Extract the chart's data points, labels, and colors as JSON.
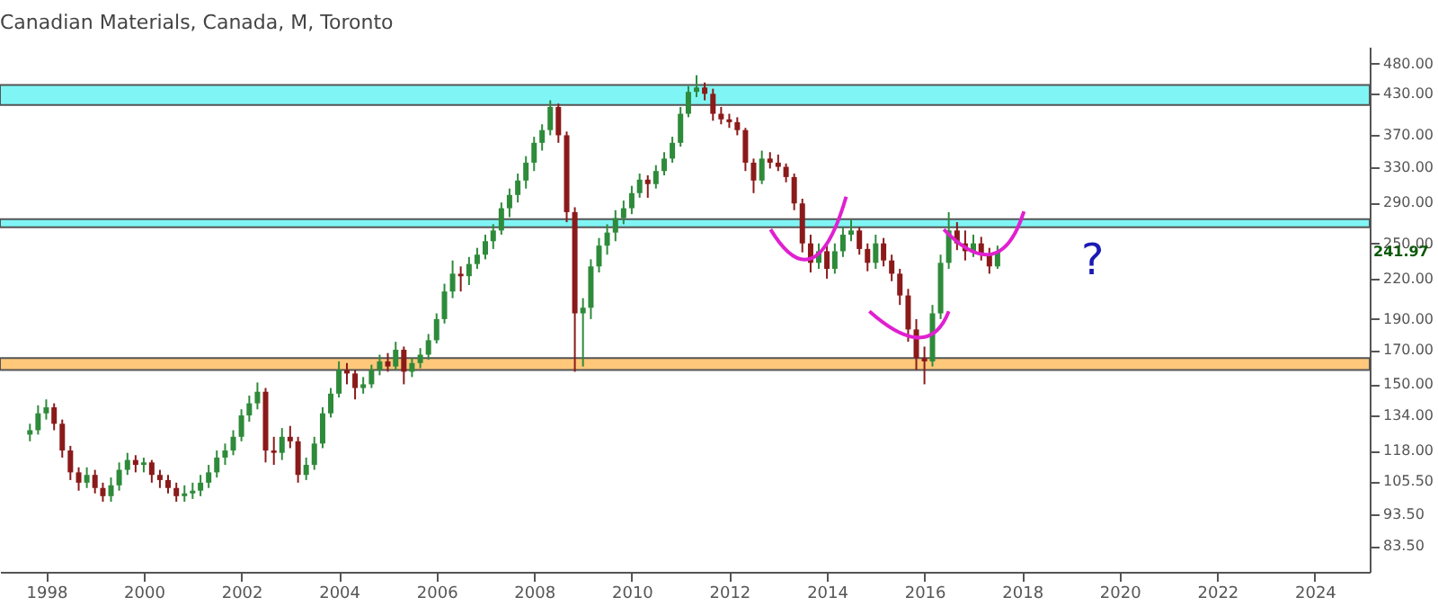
{
  "chart_data": {
    "type": "candlestick",
    "title": "Canadian Materials, Canada, M, Toronto",
    "x": [
      "1997-09",
      "1997-11",
      "1998-01",
      "1998-03",
      "1998-05",
      "1998-07",
      "1998-09",
      "1998-11",
      "1999-01",
      "1999-03",
      "1999-05",
      "1999-07",
      "1999-09",
      "1999-11",
      "2000-01",
      "2000-03",
      "2000-05",
      "2000-07",
      "2000-09",
      "2000-11",
      "2001-01",
      "2001-03",
      "2001-05",
      "2001-07",
      "2001-09",
      "2001-11",
      "2002-01",
      "2002-03",
      "2002-05",
      "2002-07",
      "2002-09",
      "2002-11",
      "2003-01",
      "2003-03",
      "2003-05",
      "2003-07",
      "2003-09",
      "2003-11",
      "2004-01",
      "2004-03",
      "2004-05",
      "2004-07",
      "2004-09",
      "2004-11",
      "2005-01",
      "2005-03",
      "2005-05",
      "2005-07",
      "2005-09",
      "2005-11",
      "2006-01",
      "2006-03",
      "2006-05",
      "2006-07",
      "2006-09",
      "2006-11",
      "2007-01",
      "2007-03",
      "2007-05",
      "2007-07",
      "2007-09",
      "2007-11",
      "2008-01",
      "2008-03",
      "2008-05",
      "2008-07",
      "2008-09",
      "2008-11",
      "2009-01",
      "2009-03",
      "2009-05",
      "2009-07",
      "2009-09",
      "2009-11",
      "2010-01",
      "2010-03",
      "2010-05",
      "2010-07",
      "2010-09",
      "2010-11",
      "2011-01",
      "2011-03",
      "2011-05",
      "2011-07",
      "2011-09",
      "2011-11",
      "2012-01",
      "2012-03",
      "2012-05",
      "2012-07",
      "2012-09",
      "2012-11",
      "2013-01",
      "2013-03",
      "2013-05",
      "2013-07",
      "2013-09",
      "2013-11",
      "2014-01",
      "2014-03",
      "2014-05",
      "2014-07",
      "2014-09",
      "2014-11",
      "2015-01",
      "2015-03",
      "2015-05",
      "2015-07",
      "2015-09",
      "2015-11",
      "2016-01",
      "2016-03",
      "2016-05",
      "2016-07",
      "2016-09",
      "2016-11",
      "2017-01",
      "2017-03",
      "2017-05",
      "2017-07"
    ],
    "ohlc": [
      [
        125,
        130,
        122,
        127
      ],
      [
        127,
        139,
        125,
        135
      ],
      [
        135,
        142,
        132,
        138
      ],
      [
        138,
        140,
        127,
        130
      ],
      [
        130,
        132,
        115,
        118
      ],
      [
        118,
        120,
        106,
        109
      ],
      [
        109,
        111,
        102,
        105
      ],
      [
        105,
        111,
        103,
        108
      ],
      [
        108,
        110,
        101,
        103
      ],
      [
        103,
        105,
        98,
        100
      ],
      [
        100,
        107,
        98,
        104
      ],
      [
        104,
        113,
        102,
        110
      ],
      [
        110,
        117,
        108,
        114
      ],
      [
        114,
        116,
        109,
        112
      ],
      [
        112,
        115,
        109,
        113
      ],
      [
        113,
        114,
        105,
        108
      ],
      [
        108,
        110,
        103,
        106
      ],
      [
        106,
        108,
        101,
        103
      ],
      [
        103,
        105,
        98,
        100
      ],
      [
        100,
        104,
        98,
        101
      ],
      [
        101,
        105,
        99,
        102
      ],
      [
        102,
        108,
        100,
        105
      ],
      [
        105,
        112,
        103,
        109
      ],
      [
        109,
        118,
        107,
        115
      ],
      [
        115,
        121,
        112,
        118
      ],
      [
        118,
        127,
        116,
        124
      ],
      [
        124,
        137,
        122,
        134
      ],
      [
        134,
        144,
        131,
        140
      ],
      [
        140,
        151,
        137,
        146
      ],
      [
        146,
        148,
        113,
        118
      ],
      [
        118,
        124,
        112,
        117
      ],
      [
        117,
        128,
        114,
        124
      ],
      [
        124,
        129,
        119,
        122
      ],
      [
        122,
        124,
        105,
        108
      ],
      [
        108,
        115,
        106,
        112
      ],
      [
        112,
        124,
        110,
        121
      ],
      [
        121,
        138,
        119,
        135
      ],
      [
        135,
        148,
        133,
        145
      ],
      [
        145,
        163,
        143,
        158
      ],
      [
        158,
        162,
        150,
        156
      ],
      [
        156,
        158,
        142,
        148
      ],
      [
        148,
        154,
        145,
        150
      ],
      [
        150,
        161,
        148,
        158
      ],
      [
        158,
        167,
        155,
        163
      ],
      [
        163,
        168,
        157,
        160
      ],
      [
        160,
        175,
        158,
        170
      ],
      [
        170,
        172,
        150,
        157
      ],
      [
        157,
        165,
        154,
        162
      ],
      [
        162,
        171,
        159,
        167
      ],
      [
        167,
        180,
        164,
        176
      ],
      [
        176,
        194,
        174,
        190
      ],
      [
        190,
        216,
        187,
        210
      ],
      [
        210,
        235,
        205,
        224
      ],
      [
        224,
        230,
        210,
        222
      ],
      [
        222,
        238,
        215,
        232
      ],
      [
        232,
        246,
        228,
        240
      ],
      [
        240,
        258,
        236,
        252
      ],
      [
        252,
        268,
        245,
        262
      ],
      [
        262,
        290,
        258,
        284
      ],
      [
        284,
        305,
        275,
        298
      ],
      [
        298,
        322,
        290,
        314
      ],
      [
        314,
        343,
        305,
        335
      ],
      [
        335,
        368,
        325,
        360
      ],
      [
        360,
        385,
        350,
        377
      ],
      [
        377,
        420,
        370,
        410
      ],
      [
        410,
        415,
        360,
        370
      ],
      [
        370,
        375,
        270,
        280
      ],
      [
        280,
        285,
        157,
        194
      ],
      [
        194,
        205,
        160,
        198
      ],
      [
        198,
        236,
        190,
        230
      ],
      [
        230,
        255,
        225,
        248
      ],
      [
        248,
        268,
        240,
        260
      ],
      [
        260,
        282,
        252,
        274
      ],
      [
        274,
        292,
        268,
        284
      ],
      [
        284,
        308,
        278,
        300
      ],
      [
        300,
        322,
        295,
        315
      ],
      [
        315,
        320,
        295,
        310
      ],
      [
        310,
        332,
        305,
        325
      ],
      [
        325,
        348,
        320,
        340
      ],
      [
        340,
        368,
        335,
        360
      ],
      [
        360,
        410,
        355,
        400
      ],
      [
        400,
        442,
        395,
        433
      ],
      [
        433,
        460,
        425,
        440
      ],
      [
        440,
        448,
        420,
        430
      ],
      [
        430,
        438,
        390,
        400
      ],
      [
        400,
        410,
        385,
        392
      ],
      [
        392,
        400,
        380,
        388
      ],
      [
        388,
        395,
        370,
        377
      ],
      [
        377,
        380,
        325,
        335
      ],
      [
        335,
        340,
        300,
        314
      ],
      [
        314,
        350,
        310,
        340
      ],
      [
        340,
        348,
        328,
        335
      ],
      [
        335,
        345,
        325,
        330
      ],
      [
        330,
        334,
        312,
        318
      ],
      [
        318,
        322,
        282,
        289
      ],
      [
        289,
        294,
        242,
        250
      ],
      [
        250,
        258,
        225,
        233
      ],
      [
        233,
        250,
        228,
        243
      ],
      [
        243,
        248,
        220,
        228
      ],
      [
        228,
        250,
        224,
        243
      ],
      [
        243,
        265,
        238,
        258
      ],
      [
        258,
        272,
        252,
        262
      ],
      [
        262,
        265,
        240,
        245
      ],
      [
        245,
        250,
        226,
        233
      ],
      [
        233,
        258,
        228,
        250
      ],
      [
        250,
        255,
        230,
        235
      ],
      [
        235,
        240,
        218,
        224
      ],
      [
        224,
        228,
        200,
        207
      ],
      [
        207,
        212,
        175,
        183
      ],
      [
        183,
        190,
        158,
        165
      ],
      [
        165,
        172,
        150,
        163
      ],
      [
        163,
        200,
        160,
        194
      ],
      [
        194,
        240,
        190,
        233
      ],
      [
        233,
        280,
        228,
        262
      ],
      [
        262,
        270,
        244,
        250
      ],
      [
        250,
        262,
        235,
        243
      ],
      [
        243,
        258,
        238,
        250
      ],
      [
        250,
        256,
        235,
        240
      ],
      [
        240,
        246,
        224,
        230
      ],
      [
        230,
        248,
        228,
        241.97
      ]
    ],
    "colors": [
      "#2e8b3a",
      "#2e8b3a",
      "#2e8b3a",
      "#8b1a1a",
      "#8b1a1a",
      "#8b1a1a",
      "#8b1a1a",
      "#2e8b3a",
      "#8b1a1a",
      "#8b1a1a",
      "#2e8b3a",
      "#2e8b3a",
      "#2e8b3a",
      "#8b1a1a",
      "#2e8b3a",
      "#8b1a1a",
      "#8b1a1a",
      "#8b1a1a",
      "#8b1a1a",
      "#2e8b3a",
      "#2e8b3a",
      "#2e8b3a",
      "#2e8b3a",
      "#2e8b3a",
      "#2e8b3a",
      "#2e8b3a",
      "#2e8b3a",
      "#2e8b3a",
      "#2e8b3a",
      "#8b1a1a",
      "#8b1a1a",
      "#2e8b3a",
      "#8b1a1a",
      "#8b1a1a",
      "#2e8b3a",
      "#2e8b3a",
      "#2e8b3a",
      "#2e8b3a",
      "#2e8b3a",
      "#8b1a1a",
      "#8b1a1a",
      "#2e8b3a",
      "#2e8b3a",
      "#2e8b3a",
      "#8b1a1a",
      "#2e8b3a",
      "#8b1a1a",
      "#2e8b3a",
      "#2e8b3a",
      "#2e8b3a",
      "#2e8b3a",
      "#2e8b3a",
      "#2e8b3a",
      "#8b1a1a",
      "#2e8b3a",
      "#2e8b3a",
      "#2e8b3a",
      "#2e8b3a",
      "#2e8b3a",
      "#2e8b3a",
      "#2e8b3a",
      "#2e8b3a",
      "#2e8b3a",
      "#2e8b3a",
      "#2e8b3a",
      "#8b1a1a",
      "#8b1a1a",
      "#8b1a1a",
      "#2e8b3a",
      "#2e8b3a",
      "#2e8b3a",
      "#2e8b3a",
      "#2e8b3a",
      "#2e8b3a",
      "#2e8b3a",
      "#2e8b3a",
      "#8b1a1a",
      "#2e8b3a",
      "#2e8b3a",
      "#2e8b3a",
      "#2e8b3a",
      "#2e8b3a",
      "#2e8b3a",
      "#8b1a1a",
      "#8b1a1a",
      "#8b1a1a",
      "#8b1a1a",
      "#8b1a1a",
      "#8b1a1a",
      "#8b1a1a",
      "#2e8b3a",
      "#8b1a1a",
      "#8b1a1a",
      "#8b1a1a",
      "#8b1a1a",
      "#8b1a1a",
      "#8b1a1a",
      "#2e8b3a",
      "#8b1a1a",
      "#2e8b3a",
      "#2e8b3a",
      "#2e8b3a",
      "#8b1a1a",
      "#8b1a1a",
      "#2e8b3a",
      "#8b1a1a",
      "#8b1a1a",
      "#8b1a1a",
      "#8b1a1a",
      "#8b1a1a",
      "#8b1a1a",
      "#2e8b3a",
      "#2e8b3a",
      "#2e8b3a",
      "#8b1a1a",
      "#8b1a1a",
      "#2e8b3a",
      "#8b1a1a",
      "#8b1a1a",
      "#2e8b3a"
    ],
    "xlim": [
      "1997-01-20",
      "2025-02-15"
    ],
    "xticks": [
      "1998",
      "2000",
      "2002",
      "2004",
      "2006",
      "2008",
      "2010",
      "2012",
      "2014",
      "2016",
      "2018",
      "2020",
      "2022",
      "2024"
    ],
    "log": true,
    "ylim": [
      76,
      510
    ],
    "yticks": [
      {
        "value": 83.5,
        "label": "83.50"
      },
      {
        "value": 93.5,
        "label": "93.50"
      },
      {
        "value": 105.5,
        "label": "105.50"
      },
      {
        "value": 118,
        "label": "118.00"
      },
      {
        "value": 134,
        "label": "134.00"
      },
      {
        "value": 150,
        "label": "150.00"
      },
      {
        "value": 170,
        "label": "170.00"
      },
      {
        "value": 190,
        "label": "190.00"
      },
      {
        "value": 220,
        "label": "220.00"
      },
      {
        "value": 250,
        "label": "250.00"
      },
      {
        "value": 290,
        "label": "290.00"
      },
      {
        "value": 330,
        "label": "330.00"
      },
      {
        "value": 370,
        "label": "370.00"
      },
      {
        "value": 430,
        "label": "430.00"
      },
      {
        "value": 480,
        "label": "480.00"
      }
    ],
    "bands": [
      {
        "axis": "y",
        "from": 413,
        "to": 444,
        "label": null,
        "color": "#7ff5f5"
      },
      {
        "axis": "y",
        "from": 265,
        "to": 273,
        "label": null,
        "color": "#7ff5f5"
      },
      {
        "axis": "y",
        "from": 158,
        "to": 165,
        "label": null,
        "color": "#ffc87a"
      }
    ],
    "annotations": [
      {
        "text": "?",
        "x": "2017-03",
        "y": 240
      },
      "241.97"
    ],
    "grid": false
  }
}
